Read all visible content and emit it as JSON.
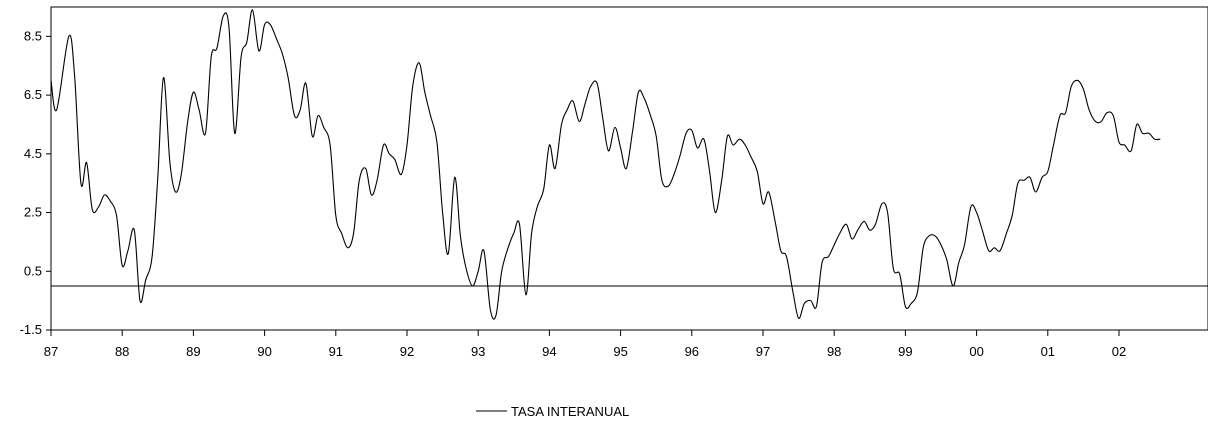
{
  "chart_data": {
    "type": "line",
    "title": "",
    "xlabel": "",
    "ylabel": "",
    "ylim": [
      -1.5,
      9.5
    ],
    "y_ticks": [
      -1.5,
      0.5,
      2.5,
      4.5,
      6.5,
      8.5
    ],
    "y_tick_labels": [
      "-1.5",
      "0.5",
      "2.5",
      "4.5",
      "6.5",
      "8.5"
    ],
    "x_ticks": [
      1987,
      1988,
      1989,
      1990,
      1991,
      1992,
      1993,
      1994,
      1995,
      1996,
      1997,
      1998,
      1999,
      2000,
      2001,
      2002
    ],
    "x_tick_labels": [
      "87",
      "88",
      "89",
      "90",
      "91",
      "92",
      "93",
      "94",
      "95",
      "96",
      "97",
      "98",
      "99",
      "00",
      "01",
      "02"
    ],
    "xlim": [
      1987.0,
      2003.25
    ],
    "reference_line": 0,
    "grid": false,
    "legend": {
      "placement": "bottom-center",
      "entries": [
        "TASA INTERANUAL"
      ]
    },
    "series": [
      {
        "name": "TASA INTERANUAL",
        "color": "#000000",
        "points": [
          [
            1987.0,
            7.0
          ],
          [
            1987.08,
            6.0
          ],
          [
            1987.25,
            8.5
          ],
          [
            1987.33,
            7.2
          ],
          [
            1987.42,
            3.5
          ],
          [
            1987.5,
            4.2
          ],
          [
            1987.58,
            2.6
          ],
          [
            1987.67,
            2.7
          ],
          [
            1987.75,
            3.1
          ],
          [
            1987.83,
            2.9
          ],
          [
            1987.92,
            2.4
          ],
          [
            1988.0,
            0.7
          ],
          [
            1988.08,
            1.2
          ],
          [
            1988.17,
            1.9
          ],
          [
            1988.25,
            -0.5
          ],
          [
            1988.33,
            0.2
          ],
          [
            1988.42,
            1.0
          ],
          [
            1988.5,
            3.7
          ],
          [
            1988.58,
            7.1
          ],
          [
            1988.67,
            4.2
          ],
          [
            1988.75,
            3.2
          ],
          [
            1988.83,
            3.8
          ],
          [
            1988.92,
            5.6
          ],
          [
            1989.0,
            6.6
          ],
          [
            1989.08,
            6.0
          ],
          [
            1989.17,
            5.2
          ],
          [
            1989.25,
            7.8
          ],
          [
            1989.33,
            8.1
          ],
          [
            1989.42,
            9.2
          ],
          [
            1989.5,
            8.8
          ],
          [
            1989.58,
            5.2
          ],
          [
            1989.67,
            7.8
          ],
          [
            1989.75,
            8.3
          ],
          [
            1989.83,
            9.4
          ],
          [
            1989.92,
            8.0
          ],
          [
            1990.0,
            8.9
          ],
          [
            1990.08,
            8.9
          ],
          [
            1990.17,
            8.4
          ],
          [
            1990.25,
            7.9
          ],
          [
            1990.33,
            7.1
          ],
          [
            1990.42,
            5.8
          ],
          [
            1990.5,
            6.0
          ],
          [
            1990.58,
            6.9
          ],
          [
            1990.67,
            5.1
          ],
          [
            1990.75,
            5.8
          ],
          [
            1990.83,
            5.4
          ],
          [
            1990.92,
            4.8
          ],
          [
            1991.0,
            2.4
          ],
          [
            1991.08,
            1.8
          ],
          [
            1991.17,
            1.3
          ],
          [
            1991.25,
            1.8
          ],
          [
            1991.33,
            3.6
          ],
          [
            1991.42,
            4.0
          ],
          [
            1991.5,
            3.1
          ],
          [
            1991.58,
            3.6
          ],
          [
            1991.67,
            4.8
          ],
          [
            1991.75,
            4.5
          ],
          [
            1991.83,
            4.3
          ],
          [
            1991.92,
            3.8
          ],
          [
            1992.0,
            4.8
          ],
          [
            1992.08,
            6.8
          ],
          [
            1992.17,
            7.6
          ],
          [
            1992.25,
            6.6
          ],
          [
            1992.33,
            5.8
          ],
          [
            1992.42,
            4.9
          ],
          [
            1992.5,
            2.5
          ],
          [
            1992.58,
            1.1
          ],
          [
            1992.67,
            3.7
          ],
          [
            1992.75,
            1.7
          ],
          [
            1992.83,
            0.6
          ],
          [
            1992.92,
            0.0
          ],
          [
            1993.0,
            0.5
          ],
          [
            1993.08,
            1.2
          ],
          [
            1993.17,
            -0.8
          ],
          [
            1993.25,
            -1.0
          ],
          [
            1993.33,
            0.5
          ],
          [
            1993.42,
            1.3
          ],
          [
            1993.5,
            1.8
          ],
          [
            1993.58,
            2.1
          ],
          [
            1993.67,
            -0.3
          ],
          [
            1993.75,
            1.8
          ],
          [
            1993.83,
            2.7
          ],
          [
            1993.92,
            3.3
          ],
          [
            1994.0,
            4.8
          ],
          [
            1994.08,
            4.0
          ],
          [
            1994.17,
            5.5
          ],
          [
            1994.25,
            6.0
          ],
          [
            1994.33,
            6.3
          ],
          [
            1994.42,
            5.6
          ],
          [
            1994.5,
            6.2
          ],
          [
            1994.58,
            6.8
          ],
          [
            1994.67,
            6.9
          ],
          [
            1994.75,
            5.7
          ],
          [
            1994.83,
            4.6
          ],
          [
            1994.92,
            5.4
          ],
          [
            1995.0,
            4.7
          ],
          [
            1995.08,
            4.0
          ],
          [
            1995.17,
            5.3
          ],
          [
            1995.25,
            6.6
          ],
          [
            1995.33,
            6.4
          ],
          [
            1995.42,
            5.8
          ],
          [
            1995.5,
            5.1
          ],
          [
            1995.58,
            3.6
          ],
          [
            1995.67,
            3.4
          ],
          [
            1995.75,
            3.8
          ],
          [
            1995.83,
            4.4
          ],
          [
            1995.92,
            5.2
          ],
          [
            1996.0,
            5.3
          ],
          [
            1996.08,
            4.7
          ],
          [
            1996.17,
            5.0
          ],
          [
            1996.25,
            3.9
          ],
          [
            1996.33,
            2.5
          ],
          [
            1996.42,
            3.6
          ],
          [
            1996.5,
            5.1
          ],
          [
            1996.58,
            4.8
          ],
          [
            1996.67,
            5.0
          ],
          [
            1996.75,
            4.8
          ],
          [
            1996.83,
            4.4
          ],
          [
            1996.92,
            3.9
          ],
          [
            1997.0,
            2.8
          ],
          [
            1997.08,
            3.2
          ],
          [
            1997.17,
            2.2
          ],
          [
            1997.25,
            1.2
          ],
          [
            1997.33,
            1.0
          ],
          [
            1997.42,
            -0.2
          ],
          [
            1997.5,
            -1.1
          ],
          [
            1997.58,
            -0.6
          ],
          [
            1997.67,
            -0.5
          ],
          [
            1997.75,
            -0.7
          ],
          [
            1997.83,
            0.8
          ],
          [
            1997.92,
            1.0
          ],
          [
            1998.0,
            1.4
          ],
          [
            1998.08,
            1.8
          ],
          [
            1998.17,
            2.1
          ],
          [
            1998.25,
            1.6
          ],
          [
            1998.33,
            1.9
          ],
          [
            1998.42,
            2.2
          ],
          [
            1998.5,
            1.9
          ],
          [
            1998.58,
            2.1
          ],
          [
            1998.67,
            2.8
          ],
          [
            1998.75,
            2.5
          ],
          [
            1998.83,
            0.6
          ],
          [
            1998.92,
            0.4
          ],
          [
            1999.0,
            -0.7
          ],
          [
            1999.08,
            -0.6
          ],
          [
            1999.17,
            -0.2
          ],
          [
            1999.25,
            1.3
          ],
          [
            1999.33,
            1.7
          ],
          [
            1999.42,
            1.7
          ],
          [
            1999.5,
            1.4
          ],
          [
            1999.58,
            0.9
          ],
          [
            1999.67,
            0.0
          ],
          [
            1999.75,
            0.8
          ],
          [
            1999.83,
            1.4
          ],
          [
            1999.92,
            2.7
          ],
          [
            2000.0,
            2.5
          ],
          [
            2000.08,
            1.9
          ],
          [
            2000.17,
            1.2
          ],
          [
            2000.25,
            1.3
          ],
          [
            2000.33,
            1.2
          ],
          [
            2000.42,
            1.8
          ],
          [
            2000.5,
            2.4
          ],
          [
            2000.58,
            3.5
          ],
          [
            2000.67,
            3.6
          ],
          [
            2000.75,
            3.7
          ],
          [
            2000.83,
            3.2
          ],
          [
            2000.92,
            3.7
          ],
          [
            2001.0,
            3.9
          ],
          [
            2001.08,
            4.8
          ],
          [
            2001.17,
            5.8
          ],
          [
            2001.25,
            5.9
          ],
          [
            2001.33,
            6.8
          ],
          [
            2001.42,
            7.0
          ],
          [
            2001.5,
            6.7
          ],
          [
            2001.58,
            6.0
          ],
          [
            2001.67,
            5.6
          ],
          [
            2001.75,
            5.6
          ],
          [
            2001.83,
            5.9
          ],
          [
            2001.92,
            5.8
          ],
          [
            2002.0,
            4.9
          ],
          [
            2002.08,
            4.8
          ],
          [
            2002.17,
            4.6
          ],
          [
            2002.25,
            5.5
          ],
          [
            2002.33,
            5.2
          ],
          [
            2002.42,
            5.2
          ],
          [
            2002.5,
            5.0
          ],
          [
            2002.58,
            5.0
          ]
        ]
      }
    ]
  }
}
